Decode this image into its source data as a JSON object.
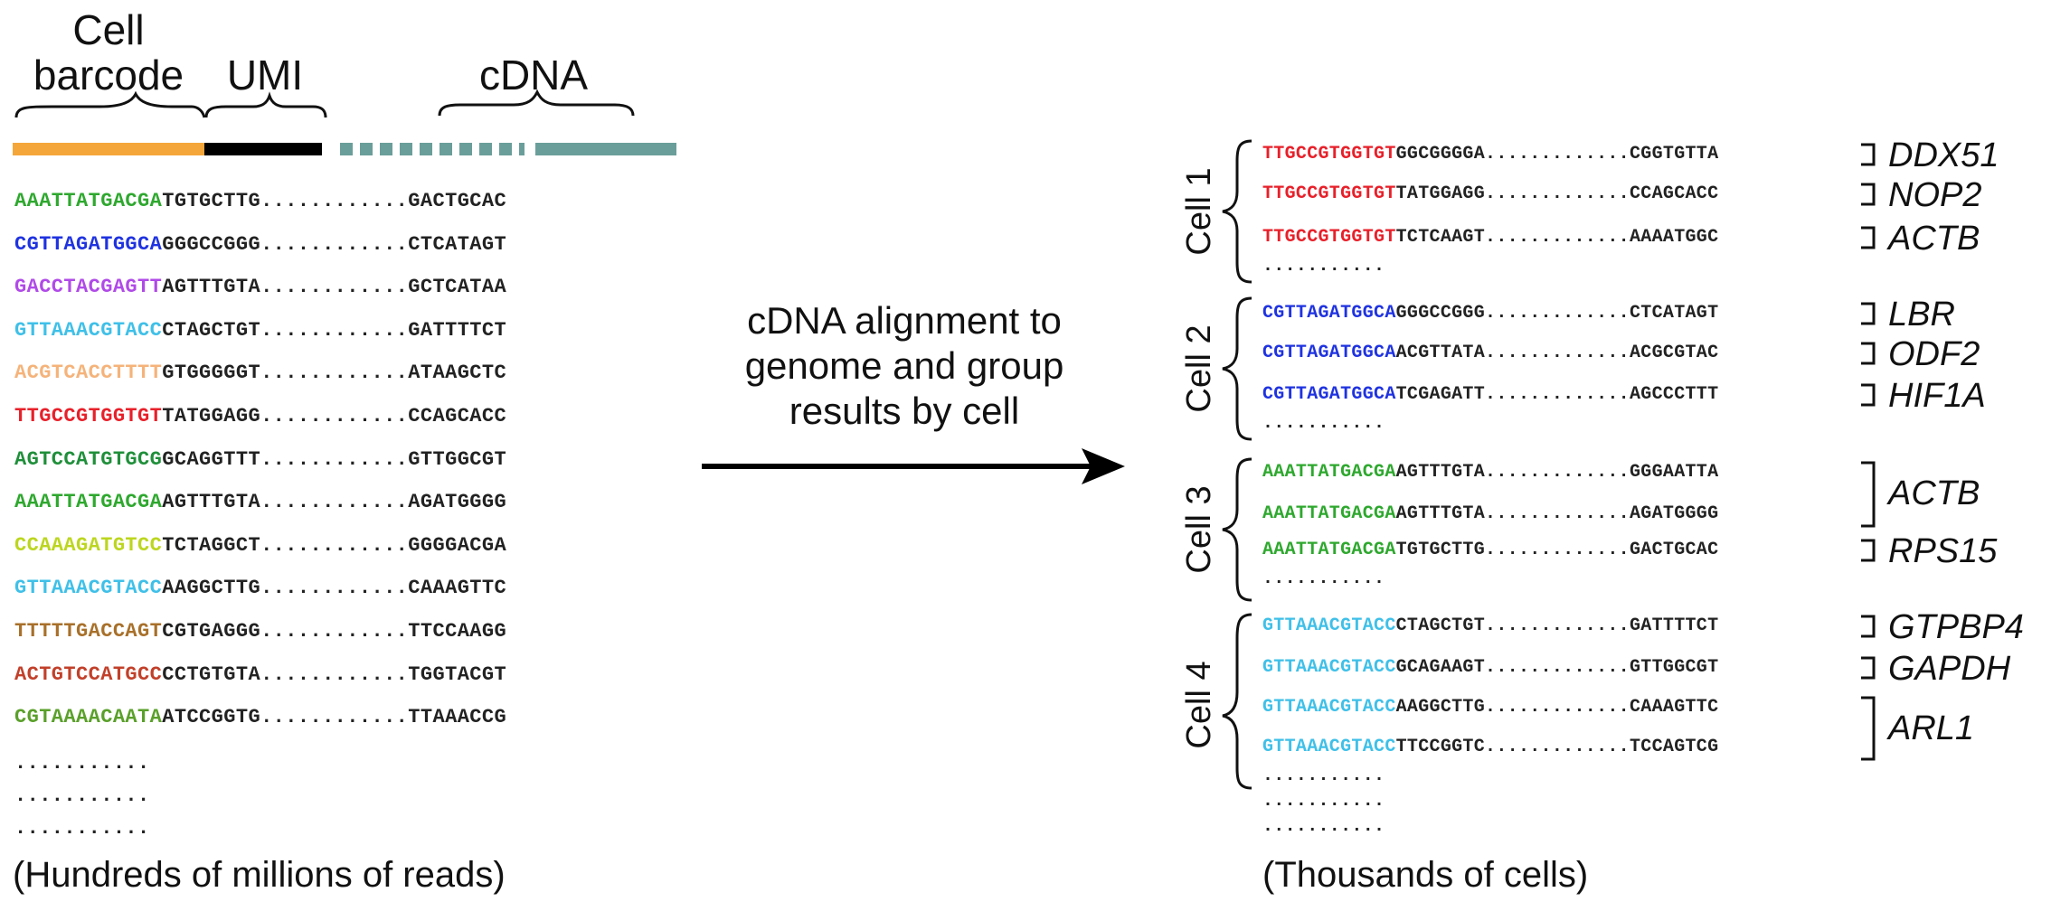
{
  "headers": {
    "barcode": "Cell\nbarcode",
    "umi": "UMI",
    "cdna": "cDNA"
  },
  "colors": {
    "barcode_bar": "#f5a63b",
    "umi_bar": "#000000",
    "cdna_bar": "#6a9e9a",
    "arrow": "#000000"
  },
  "left_reads": [
    {
      "barcode": "AAATTATGACGA",
      "umi": "TGTGCTTG",
      "cdna": "GACTGCAC",
      "color": "#2ea82e"
    },
    {
      "barcode": "CGTTAGATGGCA",
      "umi": "GGGCCGGG",
      "cdna": "CTCATAGT",
      "color": "#1f33e0"
    },
    {
      "barcode": "GACCTACGAGTT",
      "umi": "AGTTTGTA",
      "cdna": "GCTCATAA",
      "color": "#b04ae8"
    },
    {
      "barcode": "GTTAAACGTACC",
      "umi": "CTAGCTGT",
      "cdna": "GATTTTCT",
      "color": "#3fc0e8"
    },
    {
      "barcode": "ACGTCACCTTTT",
      "umi": "GTGGGGGT",
      "cdna": "ATAAGCTC",
      "color": "#f5b37a"
    },
    {
      "barcode": "TTGCCGTGGTGT",
      "umi": "TATGGAGG",
      "cdna": "CCAGCACC",
      "color": "#e8202a"
    },
    {
      "barcode": "AGTCCATGTGCG",
      "umi": "GCAGGTTT",
      "cdna": "GTTGGCGT",
      "color": "#1f8f3a"
    },
    {
      "barcode": "AAATTATGACGA",
      "umi": "AGTTTGTA",
      "cdna": "AGATGGGG",
      "color": "#2ea82e"
    },
    {
      "barcode": "CCAAAGATGTCC",
      "umi": "TCTAGGCT",
      "cdna": "GGGGACGA",
      "color": "#bcd61f"
    },
    {
      "barcode": "GTTAAACGTACC",
      "umi": "AAGGCTTG",
      "cdna": "CAAAGTTC",
      "color": "#3fc0e8"
    },
    {
      "barcode": "TTTTTGACCAGT",
      "umi": "CGTGAGGG",
      "cdna": "TTCCAAGG",
      "color": "#a8702a"
    },
    {
      "barcode": "ACTGTCCATGCC",
      "umi": "CCTGTGTA",
      "cdna": "TGGTACGT",
      "color": "#c2402a"
    },
    {
      "barcode": "CGTAAAACAATA",
      "umi": "ATCCGGTG",
      "cdna": "TTAAACCG",
      "color": "#5aa02a"
    }
  ],
  "ellipsis": "...........",
  "middle_text": "cDNA alignment to\ngenome and group\nresults by cell",
  "left_caption": "(Hundreds of millions of reads)",
  "right_caption": "(Thousands of cells)",
  "cells": [
    {
      "name": "Cell 1",
      "color": "#e8202a",
      "reads": [
        {
          "barcode": "TTGCCGTGGTGT",
          "umi": "GGCGGGGA",
          "cdna": "CGGTGTTA"
        },
        {
          "barcode": "TTGCCGTGGTGT",
          "umi": "TATGGAGG",
          "cdna": "CCAGCACC"
        },
        {
          "barcode": "TTGCCGTGGTGT",
          "umi": "TCTCAAGT",
          "cdna": "AAAATGGC"
        }
      ],
      "genes": [
        "DDX51",
        "NOP2",
        "ACTB"
      ]
    },
    {
      "name": "Cell 2",
      "color": "#1f33e0",
      "reads": [
        {
          "barcode": "CGTTAGATGGCA",
          "umi": "GGGCCGGG",
          "cdna": "CTCATAGT"
        },
        {
          "barcode": "CGTTAGATGGCA",
          "umi": "ACGTTATA",
          "cdna": "ACGCGTAC"
        },
        {
          "barcode": "CGTTAGATGGCA",
          "umi": "TCGAGATT",
          "cdna": "AGCCCTTT"
        }
      ],
      "genes": [
        "LBR",
        "ODF2",
        "HIF1A"
      ]
    },
    {
      "name": "Cell 3",
      "color": "#2ea82e",
      "reads": [
        {
          "barcode": "AAATTATGACGA",
          "umi": "AGTTTGTA",
          "cdna": "GGGAATTA"
        },
        {
          "barcode": "AAATTATGACGA",
          "umi": "AGTTTGTA",
          "cdna": "AGATGGGG"
        },
        {
          "barcode": "AAATTATGACGA",
          "umi": "TGTGCTTG",
          "cdna": "GACTGCAC"
        }
      ],
      "genes": [
        "ACTB",
        "RPS15"
      ]
    },
    {
      "name": "Cell 4",
      "color": "#3fc0e8",
      "reads": [
        {
          "barcode": "GTTAAACGTACC",
          "umi": "CTAGCTGT",
          "cdna": "GATTTTCT"
        },
        {
          "barcode": "GTTAAACGTACC",
          "umi": "GCAGAAGT",
          "cdna": "GTTGGCGT"
        },
        {
          "barcode": "GTTAAACGTACC",
          "umi": "AAGGCTTG",
          "cdna": "CAAAGTTC"
        },
        {
          "barcode": "GTTAAACGTACC",
          "umi": "TTCCGGTC",
          "cdna": "TCCAGTCG"
        }
      ],
      "genes": [
        "GTPBP4",
        "GAPDH",
        "ARL1"
      ]
    }
  ]
}
